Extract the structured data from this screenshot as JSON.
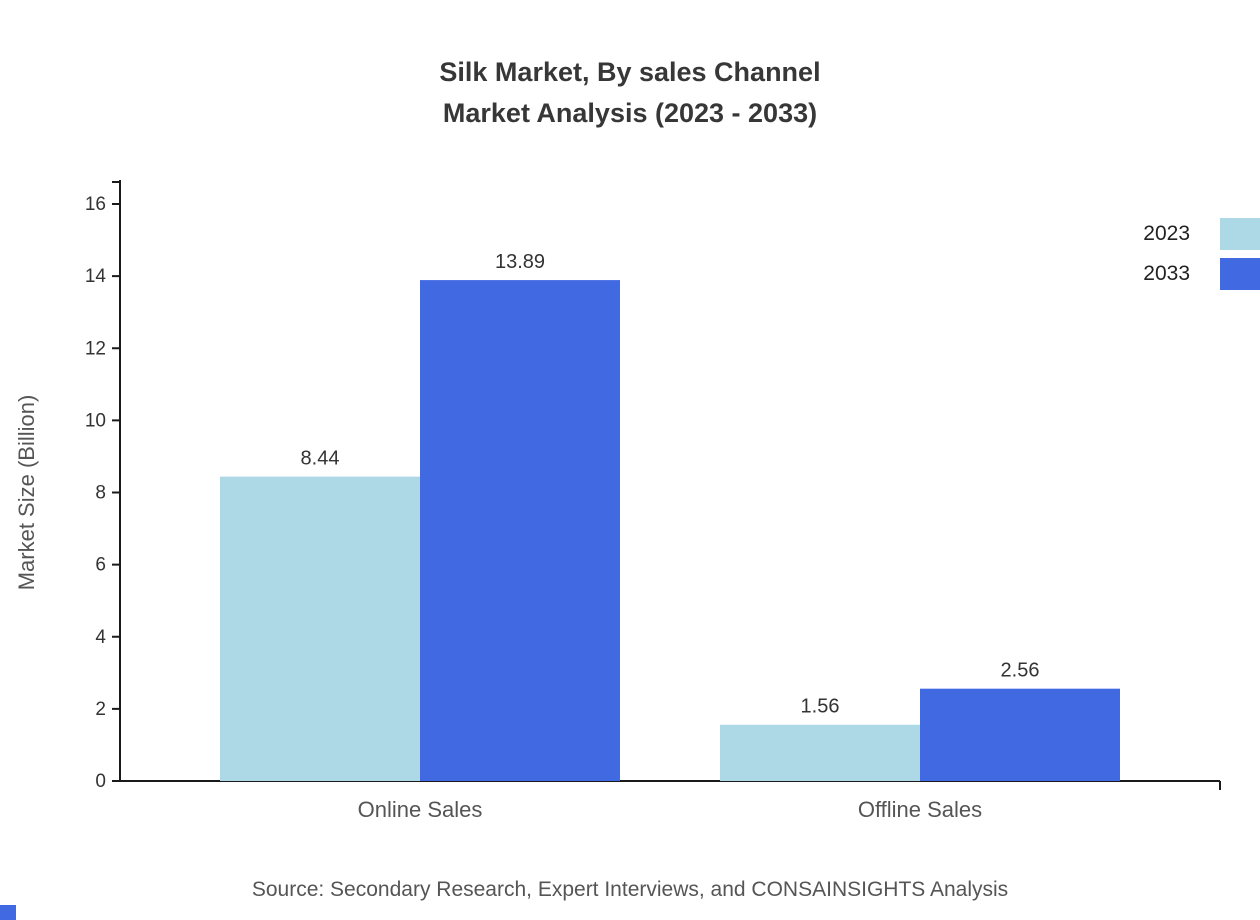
{
  "title": {
    "line1": "Silk Market, By sales Channel",
    "line2": "Market Analysis (2023 - 2033)"
  },
  "chart_data": {
    "type": "bar",
    "categories": [
      "Online Sales",
      "Offline Sales"
    ],
    "series": [
      {
        "name": "2023",
        "color": "#ADD8E6",
        "values": [
          8.44,
          1.56
        ]
      },
      {
        "name": "2033",
        "color": "#4169E1",
        "values": [
          13.89,
          2.56
        ]
      }
    ],
    "value_labels": [
      "8.44",
      "13.89",
      "1.56",
      "2.56"
    ],
    "title": "Silk Market, By sales Channel Market Analysis (2023 - 2033)",
    "xlabel": "",
    "ylabel": "Market Size (Billion)",
    "ylim": [
      0,
      16
    ],
    "ytick_step": 2,
    "yticks": [
      0,
      2,
      4,
      6,
      8,
      10,
      12,
      14,
      16
    ],
    "grid": false,
    "legend_position": "top-right",
    "show_value_labels": true
  },
  "footer": {
    "source": "Source: Secondary Research, Expert Interviews, and CONSAINSIGHTS Analysis"
  },
  "colors": {
    "series_2023": "#ADD8E6",
    "series_2033": "#4169E1",
    "title_text": "#373737",
    "axis_line": "#1a1a1a",
    "tick_text": "#333333",
    "category_text": "#555555",
    "axis_title_text": "#555555",
    "value_label_text": "#333333",
    "corner_accent": "#4169E1"
  }
}
